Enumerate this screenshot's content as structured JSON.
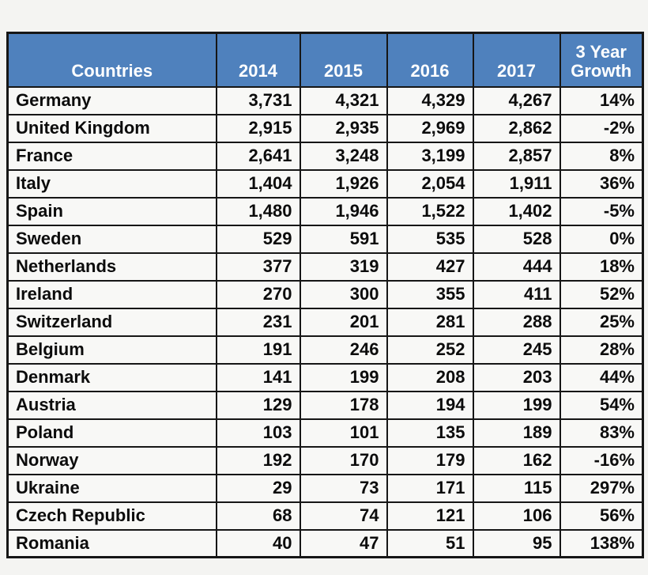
{
  "page": {
    "background_color": "#f4f4f2"
  },
  "table": {
    "header": {
      "bg": "#4f81bd",
      "text_color": "#ffffff",
      "columns": [
        {
          "key": "country",
          "label": "Countries"
        },
        {
          "key": "y2014",
          "label": "2014"
        },
        {
          "key": "y2015",
          "label": "2015"
        },
        {
          "key": "y2016",
          "label": "2016"
        },
        {
          "key": "y2017",
          "label": "2017"
        },
        {
          "key": "growth",
          "label": "3 Year Growth"
        }
      ]
    },
    "rows": [
      {
        "country": "Germany",
        "y2014": "3,731",
        "y2015": "4,321",
        "y2016": "4,329",
        "y2017": "4,267",
        "growth": "14%"
      },
      {
        "country": "United Kingdom",
        "y2014": "2,915",
        "y2015": "2,935",
        "y2016": "2,969",
        "y2017": "2,862",
        "growth": "-2%"
      },
      {
        "country": "France",
        "y2014": "2,641",
        "y2015": "3,248",
        "y2016": "3,199",
        "y2017": "2,857",
        "growth": "8%"
      },
      {
        "country": "Italy",
        "y2014": "1,404",
        "y2015": "1,926",
        "y2016": "2,054",
        "y2017": "1,911",
        "growth": "36%"
      },
      {
        "country": "Spain",
        "y2014": "1,480",
        "y2015": "1,946",
        "y2016": "1,522",
        "y2017": "1,402",
        "growth": "-5%"
      },
      {
        "country": "Sweden",
        "y2014": "529",
        "y2015": "591",
        "y2016": "535",
        "y2017": "528",
        "growth": "0%"
      },
      {
        "country": "Netherlands",
        "y2014": "377",
        "y2015": "319",
        "y2016": "427",
        "y2017": "444",
        "growth": "18%"
      },
      {
        "country": "Ireland",
        "y2014": "270",
        "y2015": "300",
        "y2016": "355",
        "y2017": "411",
        "growth": "52%"
      },
      {
        "country": "Switzerland",
        "y2014": "231",
        "y2015": "201",
        "y2016": "281",
        "y2017": "288",
        "growth": "25%"
      },
      {
        "country": "Belgium",
        "y2014": "191",
        "y2015": "246",
        "y2016": "252",
        "y2017": "245",
        "growth": "28%"
      },
      {
        "country": "Denmark",
        "y2014": "141",
        "y2015": "199",
        "y2016": "208",
        "y2017": "203",
        "growth": "44%"
      },
      {
        "country": "Austria",
        "y2014": "129",
        "y2015": "178",
        "y2016": "194",
        "y2017": "199",
        "growth": "54%"
      },
      {
        "country": "Poland",
        "y2014": "103",
        "y2015": "101",
        "y2016": "135",
        "y2017": "189",
        "growth": "83%"
      },
      {
        "country": "Norway",
        "y2014": "192",
        "y2015": "170",
        "y2016": "179",
        "y2017": "162",
        "growth": "-16%"
      },
      {
        "country": "Ukraine",
        "y2014": "29",
        "y2015": "73",
        "y2016": "171",
        "y2017": "115",
        "growth": "297%"
      },
      {
        "country": "Czech Republic",
        "y2014": "68",
        "y2015": "74",
        "y2016": "121",
        "y2017": "106",
        "growth": "56%"
      },
      {
        "country": "Romania",
        "y2014": "40",
        "y2015": "47",
        "y2016": "51",
        "y2017": "95",
        "growth": "138%"
      }
    ]
  },
  "chart_data": {
    "type": "table",
    "title": "",
    "columns": [
      "Countries",
      "2014",
      "2015",
      "2016",
      "2017",
      "3 Year Growth"
    ],
    "categories": [
      "Germany",
      "United Kingdom",
      "France",
      "Italy",
      "Spain",
      "Sweden",
      "Netherlands",
      "Ireland",
      "Switzerland",
      "Belgium",
      "Denmark",
      "Austria",
      "Poland",
      "Norway",
      "Ukraine",
      "Czech Republic",
      "Romania"
    ],
    "series": [
      {
        "name": "2014",
        "values": [
          3731,
          2915,
          2641,
          1404,
          1480,
          529,
          377,
          270,
          231,
          191,
          141,
          129,
          103,
          192,
          29,
          68,
          40
        ]
      },
      {
        "name": "2015",
        "values": [
          4321,
          2935,
          3248,
          1926,
          1946,
          591,
          319,
          300,
          201,
          246,
          199,
          178,
          101,
          170,
          73,
          74,
          47
        ]
      },
      {
        "name": "2016",
        "values": [
          4329,
          2969,
          3199,
          2054,
          1522,
          535,
          427,
          355,
          281,
          252,
          208,
          194,
          135,
          179,
          171,
          121,
          51
        ]
      },
      {
        "name": "2017",
        "values": [
          4267,
          2862,
          2857,
          1911,
          1402,
          528,
          444,
          411,
          288,
          245,
          203,
          199,
          189,
          162,
          115,
          106,
          95
        ]
      },
      {
        "name": "3 Year Growth (%)",
        "values": [
          14,
          -2,
          8,
          36,
          -5,
          0,
          18,
          52,
          25,
          28,
          44,
          54,
          83,
          -16,
          297,
          56,
          138
        ]
      }
    ],
    "legend_position": "none",
    "grid": true
  }
}
